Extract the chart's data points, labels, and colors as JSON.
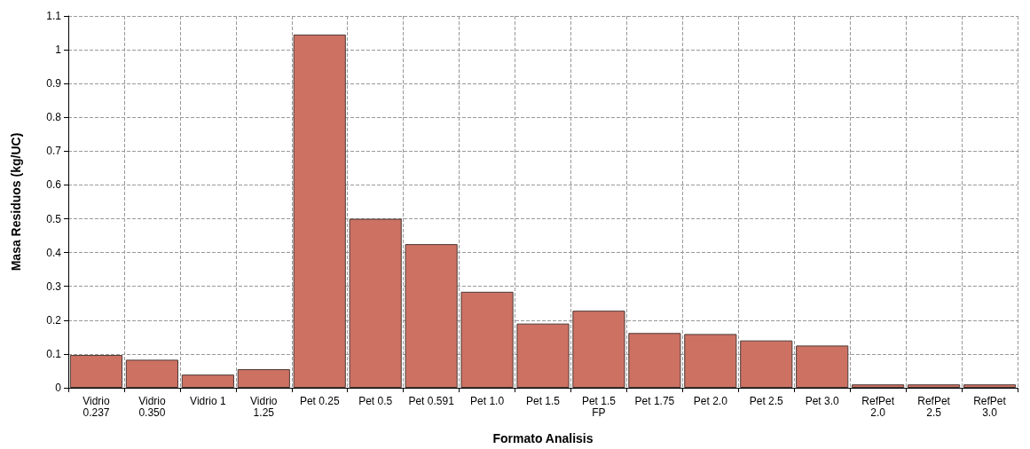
{
  "chart_data": {
    "type": "bar",
    "xlabel": "Formato Analisis",
    "ylabel": "Masa Residuos (kg/UC)",
    "categories": [
      "Vidrio\n0.237",
      "Vidrio\n0.350",
      "Vidrio 1",
      "Vidrio\n1.25",
      "Pet 0.25",
      "Pet 0.5",
      "Pet 0.591",
      "Pet 1.0",
      "Pet 1.5",
      "Pet 1.5\nFP",
      "Pet 1.75",
      "Pet 2.0",
      "Pet 2.5",
      "Pet 3.0",
      "RefPet\n2.0",
      "RefPet\n2.5",
      "RefPet\n3.0"
    ],
    "values": [
      0.097,
      0.083,
      0.039,
      0.055,
      1.045,
      0.5,
      0.425,
      0.284,
      0.19,
      0.228,
      0.162,
      0.159,
      0.14,
      0.125,
      0.01,
      0.01,
      0.01
    ],
    "color": "#cd7163",
    "ylim": [
      0,
      1.1
    ],
    "yticks": [
      0,
      0.1,
      0.2,
      0.3,
      0.4,
      0.5,
      0.6,
      0.7,
      0.8,
      0.9,
      1,
      1.1
    ],
    "grid": true
  }
}
